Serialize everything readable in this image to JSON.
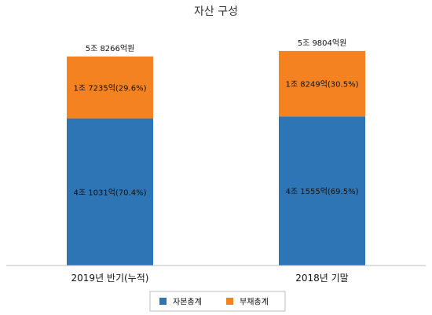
{
  "chart_data": {
    "type": "bar",
    "stacked": true,
    "title": "자산 구성",
    "categories": [
      "2019년 반기(누적)",
      "2018년 기말"
    ],
    "totals": [
      "5조 8266억원",
      "5조 9804억원"
    ],
    "total_values": [
      58266,
      59804
    ],
    "unit": "억원",
    "series": [
      {
        "name": "자본총계",
        "color": "#2e75b6",
        "values": [
          41031,
          41555
        ],
        "labels": [
          "4조 1031억(70.4%)",
          "4조 1555억(69.5%)"
        ]
      },
      {
        "name": "부채총계",
        "color": "#f58220",
        "values": [
          17235,
          18249
        ],
        "labels": [
          "1조 7235억(29.6%)",
          "1조 8249억(30.5%)"
        ]
      }
    ],
    "legend_position": "bottom",
    "grid": false
  }
}
